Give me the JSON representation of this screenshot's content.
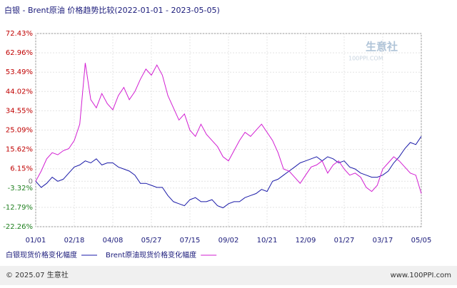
{
  "chart_data": {
    "type": "line",
    "title": "白银 - Brent原油 价格趋势比较(2022-01-01 - 2023-05-05)",
    "x": [
      "01/01",
      null,
      null,
      null,
      null,
      null,
      null,
      "02/18",
      null,
      null,
      null,
      null,
      null,
      null,
      "04/08",
      null,
      null,
      null,
      null,
      null,
      null,
      "05/27",
      null,
      null,
      null,
      null,
      null,
      null,
      "07/15",
      null,
      null,
      null,
      null,
      null,
      null,
      "09/02",
      null,
      null,
      null,
      null,
      null,
      null,
      "10/21",
      null,
      null,
      null,
      null,
      null,
      null,
      "12/09",
      null,
      null,
      null,
      null,
      null,
      null,
      "01/27",
      null,
      null,
      null,
      null,
      null,
      null,
      "03/17",
      null,
      null,
      null,
      null,
      null,
      null,
      "05/05"
    ],
    "series": [
      {
        "name": "白银现货价格变化幅度",
        "color": "#1a1aa8",
        "values": [
          0,
          -3,
          -1,
          2,
          0,
          1,
          4,
          7,
          8,
          10,
          9,
          11,
          8,
          9,
          9,
          7,
          6,
          5,
          3,
          -1,
          -1,
          -2,
          -3,
          -3,
          -7,
          -10,
          -11,
          -12,
          -9,
          -8,
          -10,
          -10,
          -9,
          -12,
          -13,
          -11,
          -10,
          -10,
          -8,
          -7,
          -6,
          -4,
          -5,
          0,
          1,
          3,
          5,
          7,
          9,
          10,
          11,
          12,
          10,
          12,
          11,
          9,
          10,
          7,
          6,
          4,
          3,
          2,
          2,
          3,
          5,
          9,
          12,
          16,
          19,
          18,
          22
        ]
      },
      {
        "name": "Brent原油现货价格变化幅度",
        "color": "#d21ed2",
        "values": [
          0,
          5,
          11,
          14,
          13,
          15,
          16,
          20,
          28,
          58,
          40,
          36,
          43,
          38,
          35,
          42,
          46,
          40,
          44,
          50,
          55,
          52,
          57,
          52,
          42,
          36,
          30,
          33,
          25,
          22,
          28,
          23,
          20,
          17,
          12,
          10,
          15,
          20,
          24,
          22,
          25,
          28,
          24,
          20,
          14,
          6,
          5,
          2,
          -1,
          3,
          7,
          8,
          10,
          4,
          8,
          10,
          6,
          3,
          4,
          2,
          -3,
          -5,
          -2,
          6,
          9,
          12,
          10,
          7,
          4,
          3,
          -6
        ]
      }
    ],
    "ylim": [
      -22.26,
      72.43
    ],
    "yticks": [
      {
        "value": 72.43,
        "label": "72.43%"
      },
      {
        "value": 62.96,
        "label": "62.96%"
      },
      {
        "value": 53.49,
        "label": "53.49%"
      },
      {
        "value": 44.02,
        "label": "44.02%"
      },
      {
        "value": 34.55,
        "label": "34.55%"
      },
      {
        "value": 25.09,
        "label": "25.09%"
      },
      {
        "value": 15.62,
        "label": "15.62%"
      },
      {
        "value": 6.15,
        "label": "6.15%"
      },
      0,
      {
        "value": -3.32,
        "label": "-3.32%"
      },
      {
        "value": -12.79,
        "label": "-12.79%"
      },
      {
        "value": -22.26,
        "label": "-22.26%"
      }
    ],
    "grid": true,
    "watermark": {
      "name": "生意社",
      "site": "100PPI.COM"
    },
    "footer": {
      "copyright": "© 2025.07 生意社",
      "url": "www.100PPI.com"
    }
  }
}
